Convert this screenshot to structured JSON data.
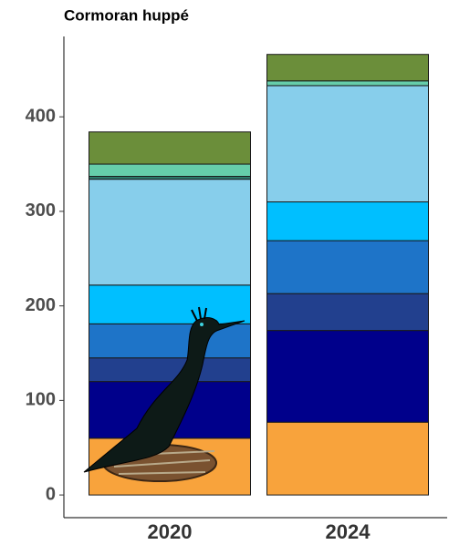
{
  "chart_data": {
    "type": "stacked_bar",
    "title": "Cormoran huppé",
    "categories": [
      "2020",
      "2024"
    ],
    "series": [
      {
        "color": "#f8a33c",
        "values": [
          60,
          77
        ]
      },
      {
        "color": "#00008b",
        "values": [
          60,
          97
        ]
      },
      {
        "color": "#22408e",
        "values": [
          25,
          39
        ]
      },
      {
        "color": "#1e74c8",
        "values": [
          36,
          56
        ]
      },
      {
        "color": "#00bfff",
        "values": [
          41,
          41
        ]
      },
      {
        "color": "#87ceeb",
        "values": [
          112,
          123
        ]
      },
      {
        "color": "#2e7d6e",
        "values": [
          3,
          0
        ]
      },
      {
        "color": "#66cdaa",
        "values": [
          13,
          5
        ]
      },
      {
        "color": "#6b8e3a",
        "values": [
          34,
          28
        ]
      }
    ],
    "ylim": [
      -24,
      485
    ],
    "yticks": [
      0,
      100,
      200,
      300,
      400
    ]
  }
}
